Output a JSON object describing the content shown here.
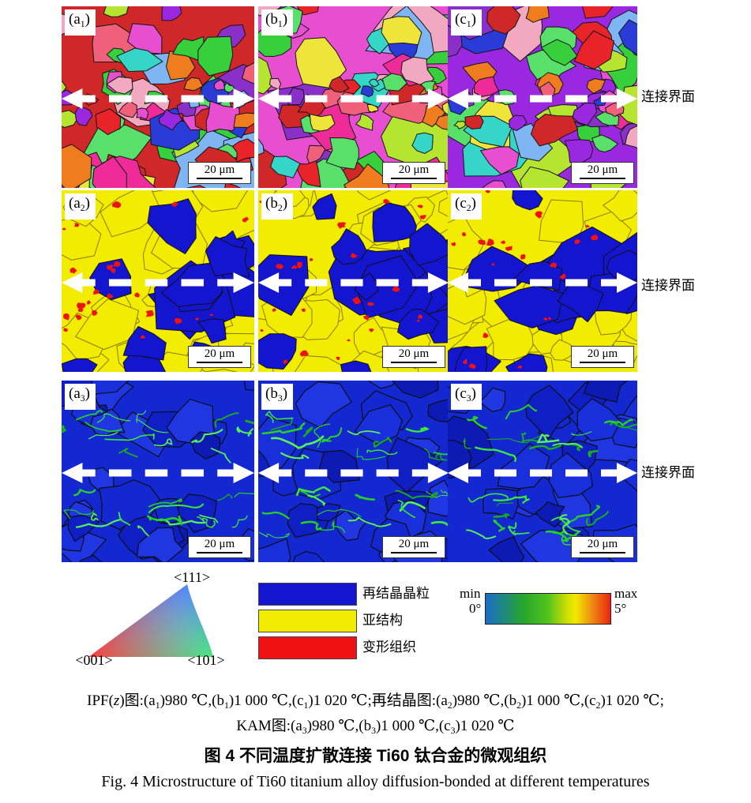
{
  "figure": {
    "scale_bar_label": "20 μm",
    "rows": [
      {
        "type": "ipf",
        "interface_label": "连接界面",
        "panels": [
          {
            "label": "(a_1)"
          },
          {
            "label": "(b_1)"
          },
          {
            "label": "(c_1)"
          }
        ]
      },
      {
        "type": "rex",
        "interface_label": "连接界面",
        "panels": [
          {
            "label": "(a_2)"
          },
          {
            "label": "(b_2)"
          },
          {
            "label": "(c_2)"
          }
        ]
      },
      {
        "type": "kam",
        "interface_label": "连接界面",
        "panels": [
          {
            "label": "(a_3)"
          },
          {
            "label": "(b_3)"
          },
          {
            "label": "(c_3)"
          }
        ]
      }
    ]
  },
  "legends": {
    "ipf_triangle": {
      "top_label": "<111>",
      "bottom_left_label": "<001>",
      "bottom_right_label": "<101>"
    },
    "phase_key": {
      "items": [
        {
          "label": "再结晶晶粒",
          "color": "#1315cf"
        },
        {
          "label": "亚结构",
          "color": "#f2ec00"
        },
        {
          "label": "变形组织",
          "color": "#f01212"
        }
      ]
    },
    "kam_scale": {
      "min_label": "min",
      "min_value": "0°",
      "max_label": "max",
      "max_value": "5°",
      "gradient": [
        "#1a6dc8",
        "#27a52e",
        "#52c31d",
        "#c6dc05",
        "#f2ea00",
        "#ef8511",
        "#e92510"
      ]
    }
  },
  "captions": {
    "detail_line1": "IPF(*z*)图:(a_1)980 ℃,(b_1)1 000 ℃,(c_1)1 020 ℃;再结晶图:(a_2)980 ℃,(b_2)1 000 ℃,(c_2)1 020 ℃;",
    "detail_line2": "KAM图:(a_3)980 ℃,(b_3)1 000 ℃,(c_3)1 020 ℃",
    "title_zh": "图 4  不同温度扩散连接 Ti60 钛合金的微观组织",
    "title_en": "Fig. 4  Microstructure of Ti60 titanium alloy diffusion-bonded at different temperatures"
  },
  "colors": {
    "ipf_palette": [
      "#e8242a",
      "#37d03c",
      "#2b3bd8",
      "#9a28e0",
      "#ef7d1f",
      "#ef2b9a",
      "#35d6c8",
      "#b5e431",
      "#f2a8c0",
      "#7fb5f2",
      "#efe53a",
      "#8b2fc9",
      "#f0607a",
      "#58e06a",
      "#d02828",
      "#e84fd0"
    ],
    "recrystallized": "#1315cf",
    "substructure": "#f2ec00",
    "deformed": "#f01212",
    "kam_base": "#1428d2",
    "kam_blues": [
      "#0f1fc4",
      "#1428d2",
      "#1a2fdc",
      "#0d1bb4",
      "#1f36e2"
    ],
    "kam_greens": [
      "#23d023",
      "#3ae83a",
      "#18b018",
      "#57f057"
    ],
    "grain_boundary": "#151515",
    "arrow": "#ffffff"
  }
}
